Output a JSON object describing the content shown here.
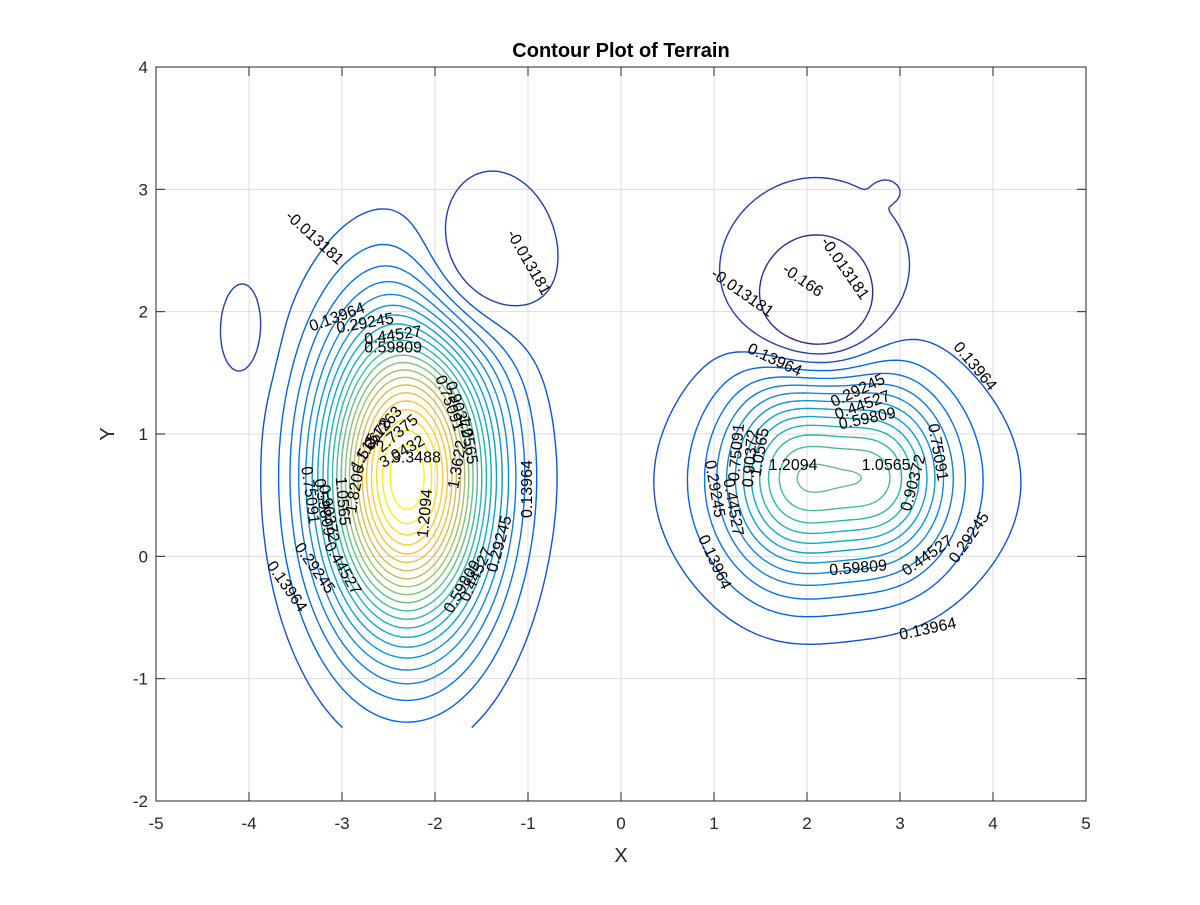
{
  "chart_data": {
    "type": "contour",
    "title": "Contour Plot of Terrain",
    "xlabel": "X",
    "ylabel": "Y",
    "xlim": [
      -5,
      5
    ],
    "ylim": [
      -2,
      4
    ],
    "grid": true,
    "x_ticks": [
      -5,
      -4,
      -3,
      -2,
      -1,
      0,
      1,
      2,
      3,
      4,
      5
    ],
    "y_ticks": [
      -2,
      -1,
      0,
      1,
      2,
      3,
      4
    ],
    "x_tick_labels": [
      "-5",
      "-4",
      "-3",
      "-2",
      "-1",
      "0",
      "1",
      "2",
      "3",
      "4",
      "5"
    ],
    "y_tick_labels": [
      "-2",
      "-1",
      "0",
      "1",
      "2",
      "3",
      "4"
    ],
    "colormap": "parula",
    "contour_levels": [
      -0.166,
      -0.013181,
      0.13964,
      0.29245,
      0.44527,
      0.59809,
      0.75091,
      0.90372,
      1.0565,
      1.2094,
      1.3622,
      1.515,
      1.6678,
      1.8206,
      1.9735,
      2.1263,
      2.2791,
      2.4319,
      2.5847,
      2.7375,
      2.8904,
      3.0432,
      3.196,
      3.3488
    ],
    "peaks": [
      {
        "x": -2.3,
        "y": 0.65,
        "max_level": 3.3488
      },
      {
        "x": 1.85,
        "y": 0.65,
        "max_level": 1.2094
      },
      {
        "x": 2.85,
        "y": 0.65,
        "max_level": 1.0565
      }
    ],
    "contour_labels": [
      {
        "text": "-0.013181",
        "x": -3.3,
        "y": 2.6,
        "angle": 42
      },
      {
        "text": "-0.013181",
        "x": -1.0,
        "y": 2.4,
        "angle": 60
      },
      {
        "text": "0.13964",
        "x": -3.05,
        "y": 1.95,
        "angle": -20
      },
      {
        "text": "0.29245",
        "x": -2.75,
        "y": 1.9,
        "angle": -10
      },
      {
        "text": "0.44527",
        "x": -2.45,
        "y": 1.8,
        "angle": -8
      },
      {
        "text": "0.59809",
        "x": -2.45,
        "y": 1.7,
        "angle": 0
      },
      {
        "text": "0.75091",
        "x": -1.85,
        "y": 1.25,
        "angle": 70
      },
      {
        "text": "0.90372",
        "x": -1.75,
        "y": 1.2,
        "angle": 72
      },
      {
        "text": "1.0565",
        "x": -1.65,
        "y": 0.95,
        "angle": 80
      },
      {
        "text": "1.2094",
        "x": -2.1,
        "y": 0.35,
        "angle": -85
      },
      {
        "text": "1.3622",
        "x": -1.75,
        "y": 0.75,
        "angle": -80
      },
      {
        "text": "1.515",
        "x": -2.75,
        "y": 0.85,
        "angle": -60
      },
      {
        "text": "1.6678",
        "x": -2.65,
        "y": 0.95,
        "angle": -55
      },
      {
        "text": "2.1263",
        "x": -2.55,
        "y": 1.05,
        "angle": -50
      },
      {
        "text": "2.7375",
        "x": -2.4,
        "y": 1.0,
        "angle": -40
      },
      {
        "text": "3.0432",
        "x": -2.35,
        "y": 0.85,
        "angle": -30
      },
      {
        "text": "3.3488",
        "x": -2.2,
        "y": 0.8,
        "angle": 0
      },
      {
        "text": "1.8206",
        "x": -2.85,
        "y": 0.55,
        "angle": -80
      },
      {
        "text": "1.0565",
        "x": -3.0,
        "y": 0.45,
        "angle": 85
      },
      {
        "text": "0.90372",
        "x": -3.15,
        "y": 0.35,
        "angle": 80
      },
      {
        "text": "0.75091",
        "x": -3.35,
        "y": 0.5,
        "angle": 82
      },
      {
        "text": "0.59809",
        "x": -3.2,
        "y": 0.4,
        "angle": 80
      },
      {
        "text": "0.44527",
        "x": -3.0,
        "y": -0.1,
        "angle": 60
      },
      {
        "text": "0.29245",
        "x": -3.3,
        "y": -0.1,
        "angle": 55
      },
      {
        "text": "0.13964",
        "x": -3.6,
        "y": -0.25,
        "angle": 55
      },
      {
        "text": "0.13964",
        "x": -1.0,
        "y": 0.55,
        "angle": -90
      },
      {
        "text": "0.29245",
        "x": -1.3,
        "y": 0.1,
        "angle": -75
      },
      {
        "text": "0.44527",
        "x": -1.55,
        "y": -0.15,
        "angle": -65
      },
      {
        "text": "0.59809",
        "x": -1.7,
        "y": -0.25,
        "angle": -60
      },
      {
        "text": "-0.013181",
        "x": 1.3,
        "y": 2.15,
        "angle": 35
      },
      {
        "text": "-0.166",
        "x": 1.95,
        "y": 2.25,
        "angle": 35
      },
      {
        "text": "-0.013181",
        "x": 2.4,
        "y": 2.35,
        "angle": 55
      },
      {
        "text": "0.13964",
        "x": 1.65,
        "y": 1.6,
        "angle": 25
      },
      {
        "text": "0.29245",
        "x": 2.55,
        "y": 1.35,
        "angle": -25
      },
      {
        "text": "0.44527",
        "x": 2.6,
        "y": 1.23,
        "angle": -20
      },
      {
        "text": "0.59809",
        "x": 2.65,
        "y": 1.12,
        "angle": -12
      },
      {
        "text": "0.13964",
        "x": 3.8,
        "y": 1.55,
        "angle": 50
      },
      {
        "text": "0.75091",
        "x": 3.4,
        "y": 0.85,
        "angle": 80
      },
      {
        "text": "0.90372",
        "x": 3.15,
        "y": 0.6,
        "angle": -75
      },
      {
        "text": "1.0565",
        "x": 2.85,
        "y": 0.74,
        "angle": 0
      },
      {
        "text": "1.2094",
        "x": 1.85,
        "y": 0.74,
        "angle": 0
      },
      {
        "text": "0.75091",
        "x": 1.25,
        "y": 0.85,
        "angle": -85
      },
      {
        "text": "0.90372",
        "x": 1.4,
        "y": 0.8,
        "angle": -85
      },
      {
        "text": "1.0565",
        "x": 1.5,
        "y": 0.85,
        "angle": -80
      },
      {
        "text": "0.29245",
        "x": 1.0,
        "y": 0.55,
        "angle": 80
      },
      {
        "text": "0.44527",
        "x": 1.2,
        "y": 0.4,
        "angle": 80
      },
      {
        "text": "0.13964",
        "x": 1.0,
        "y": -0.05,
        "angle": 65
      },
      {
        "text": "0.59809",
        "x": 2.55,
        "y": -0.1,
        "angle": -5
      },
      {
        "text": "0.44527",
        "x": 3.3,
        "y": 0.0,
        "angle": -35
      },
      {
        "text": "0.29245",
        "x": 3.75,
        "y": 0.15,
        "angle": -55
      },
      {
        "text": "0.13964",
        "x": 3.3,
        "y": -0.6,
        "angle": -12
      }
    ]
  }
}
